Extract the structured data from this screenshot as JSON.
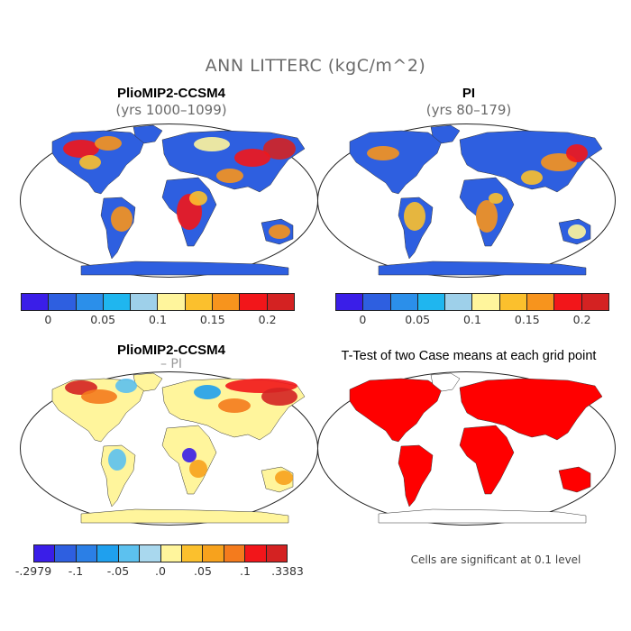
{
  "title": "ANN LITTERC (kgC/m^2)",
  "panels": [
    {
      "title": "PlioMIP2-CCSM4",
      "subtitle": "(yrs 1000–1099)"
    },
    {
      "title": "PI",
      "subtitle": "(yrs 80–179)"
    },
    {
      "title": "PlioMIP2-CCSM4",
      "subtitle": "– PI"
    },
    {
      "title": "T-Test of two Case means at each grid point",
      "subtitle": ""
    }
  ],
  "colorbar_abs": {
    "colors": [
      "#3a1ee8",
      "#2e5fe0",
      "#2b8fea",
      "#1fb6ef",
      "#9ed0ea",
      "#fff59c",
      "#fbc02d",
      "#f7941d",
      "#f2161a",
      "#d42222"
    ],
    "tick_labels": [
      "0",
      "0.05",
      "0.1",
      "0.15",
      "0.2"
    ]
  },
  "colorbar_diff": {
    "colors": [
      "#3a1ee8",
      "#2e5fe0",
      "#2b7fe6",
      "#1fa0ee",
      "#5cc1ef",
      "#a9d8ee",
      "#fff59c",
      "#fbc02d",
      "#f7a21d",
      "#f47b1d",
      "#f2161a",
      "#d42222"
    ],
    "tick_labels": [
      "-.2979",
      "-.1",
      "-.05",
      ".0",
      ".05",
      ".1",
      ".3383"
    ]
  },
  "significance_note": "Cells are significant at 0.1 level",
  "map_fill": {
    "ccsm4": {
      "ocean": "#ffffff",
      "land_main": "#2e5fe0",
      "warm": "#f2161a",
      "hot": "#d42222",
      "mid": "#f7941d",
      "yellow": "#fff59c",
      "blue": "#2b8fea"
    },
    "pi": {
      "land_main": "#2e5fe0"
    },
    "diff": {
      "land_main": "#fff59c"
    },
    "ttest": {
      "sig": "#ff0000"
    }
  }
}
